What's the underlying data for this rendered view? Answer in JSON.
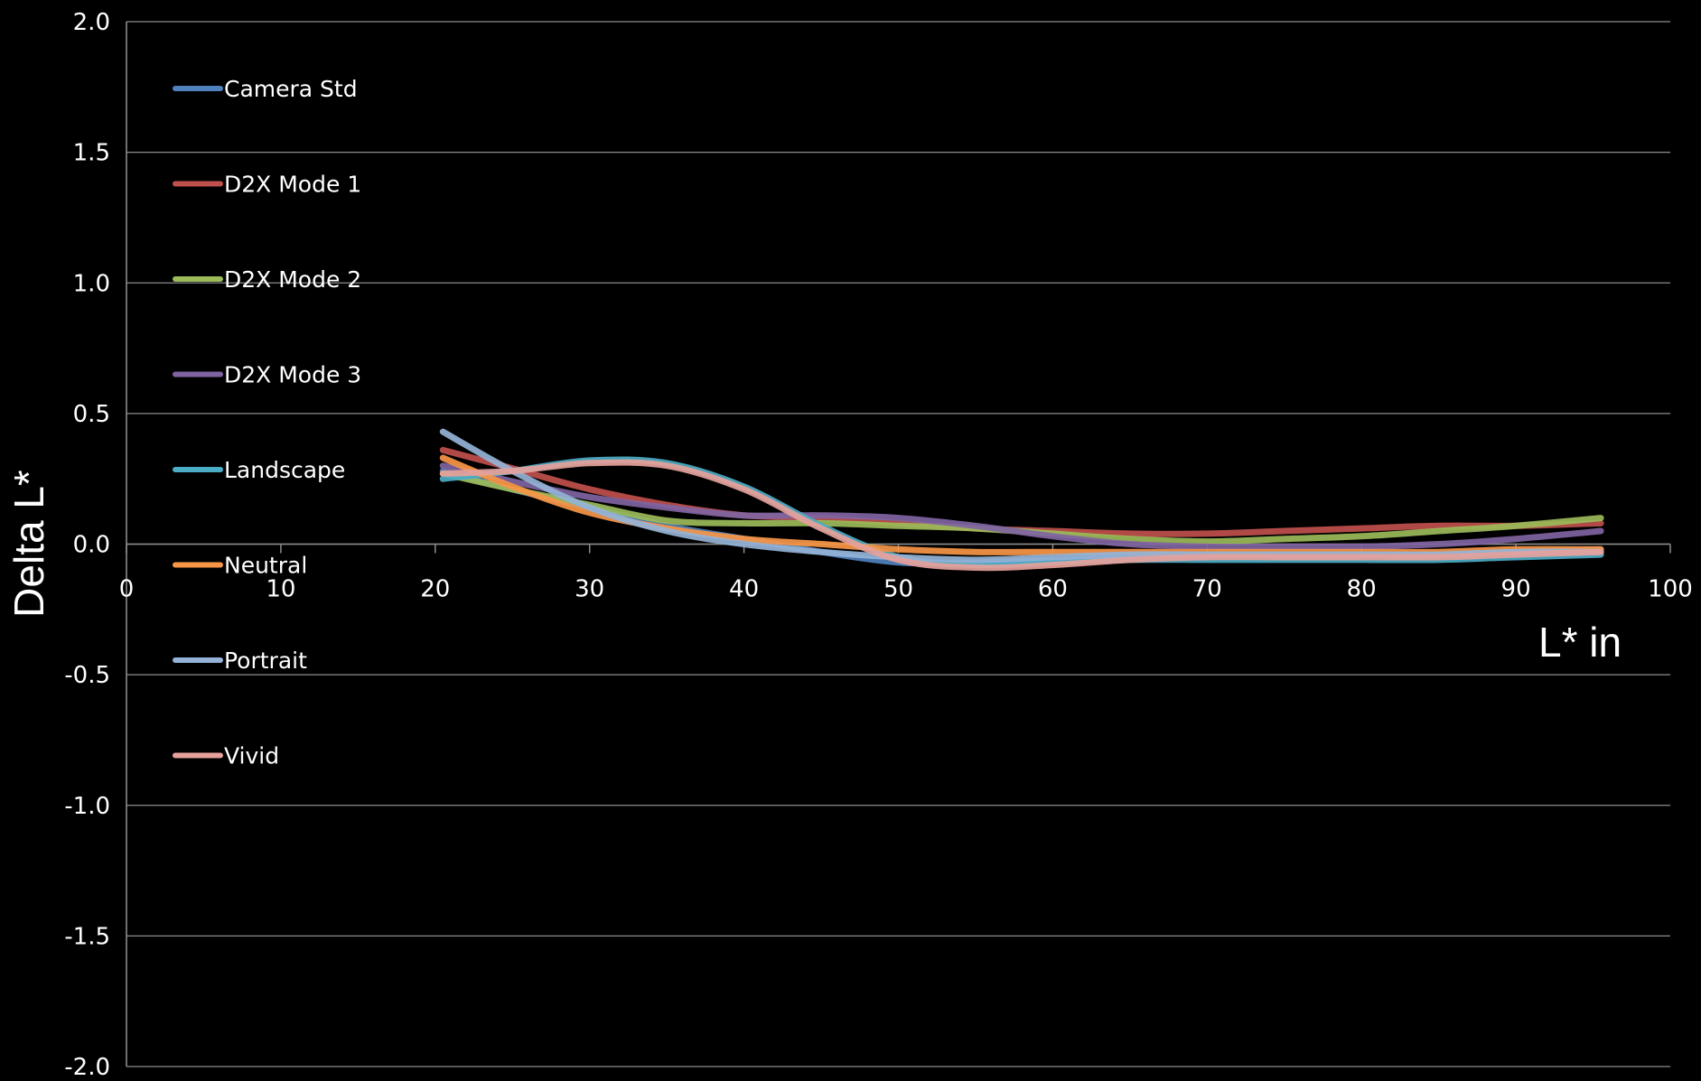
{
  "chart_data": {
    "type": "line",
    "title": "",
    "xlabel": "L* in",
    "ylabel": "Delta L*",
    "xlim": [
      0,
      100
    ],
    "ylim": [
      -2.0,
      2.0
    ],
    "x_ticks": [
      "0",
      "10",
      "20",
      "30",
      "40",
      "50",
      "60",
      "70",
      "80",
      "90",
      "100"
    ],
    "y_ticks": [
      "2.0",
      "1.5",
      "1.0",
      "0.5",
      "0.0",
      "-0.5",
      "-1.0",
      "-1.5",
      "-2.0"
    ],
    "grid": "horizontal",
    "legend_position": "left",
    "x": [
      20.5,
      25,
      30,
      35,
      40,
      45,
      50,
      55,
      60,
      65,
      70,
      75,
      80,
      85,
      90,
      95.5
    ],
    "series": [
      {
        "name": "Camera Std",
        "color": "#4f81bd",
        "values": [
          0.28,
          0.21,
          0.14,
          0.07,
          0.02,
          -0.03,
          -0.07,
          -0.07,
          -0.06,
          -0.05,
          -0.05,
          -0.05,
          -0.05,
          -0.04,
          -0.03,
          -0.02
        ]
      },
      {
        "name": "D2X Mode 1",
        "color": "#c0504d",
        "values": [
          0.36,
          0.29,
          0.21,
          0.15,
          0.11,
          0.1,
          0.08,
          0.06,
          0.05,
          0.04,
          0.04,
          0.05,
          0.06,
          0.07,
          0.07,
          0.08
        ]
      },
      {
        "name": "D2X Mode 2",
        "color": "#9bbb59",
        "values": [
          0.27,
          0.21,
          0.15,
          0.09,
          0.08,
          0.08,
          0.07,
          0.06,
          0.04,
          0.02,
          0.01,
          0.02,
          0.03,
          0.05,
          0.07,
          0.1
        ]
      },
      {
        "name": "D2X Mode 3",
        "color": "#8064a2",
        "values": [
          0.3,
          0.24,
          0.18,
          0.14,
          0.11,
          0.11,
          0.1,
          0.07,
          0.03,
          0.0,
          -0.01,
          -0.01,
          -0.01,
          0.0,
          0.02,
          0.05
        ]
      },
      {
        "name": "Landscape",
        "color": "#4bacc6",
        "values": [
          0.25,
          0.28,
          0.32,
          0.31,
          0.22,
          0.07,
          -0.05,
          -0.08,
          -0.07,
          -0.06,
          -0.06,
          -0.06,
          -0.06,
          -0.06,
          -0.05,
          -0.04
        ]
      },
      {
        "name": "Neutral",
        "color": "#f79646",
        "values": [
          0.33,
          0.22,
          0.12,
          0.06,
          0.02,
          0.0,
          -0.02,
          -0.03,
          -0.03,
          -0.03,
          -0.03,
          -0.03,
          -0.03,
          -0.03,
          -0.02,
          -0.02
        ]
      },
      {
        "name": "Portrait",
        "color": "#95b3d7",
        "values": [
          0.43,
          0.28,
          0.14,
          0.05,
          0.0,
          -0.03,
          -0.05,
          -0.06,
          -0.05,
          -0.04,
          -0.04,
          -0.04,
          -0.04,
          -0.04,
          -0.03,
          -0.03
        ]
      },
      {
        "name": "Vivid",
        "color": "#e6a19b",
        "values": [
          0.27,
          0.28,
          0.31,
          0.3,
          0.21,
          0.06,
          -0.06,
          -0.09,
          -0.08,
          -0.06,
          -0.05,
          -0.05,
          -0.05,
          -0.05,
          -0.04,
          -0.03
        ]
      }
    ]
  },
  "colors": {
    "background": "#000000",
    "gridline": "#8c8c8c",
    "axis": "#8c8c8c",
    "text": "#ffffff"
  }
}
